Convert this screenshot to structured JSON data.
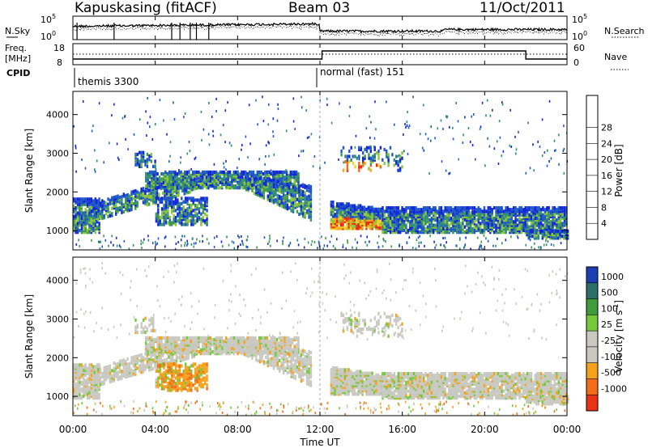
{
  "header": {
    "station": "Kapuskasing (fitACF)",
    "beam": "Beam 03",
    "date": "11/Oct/2011"
  },
  "noise_panel": {
    "left_label": "N.Sky",
    "right_label": "N.Search",
    "left_ticks": [
      "10^5",
      "10^0"
    ],
    "right_ticks": [
      "10^5",
      "10^0"
    ]
  },
  "freq_panel": {
    "left_label_line1": "Freq.",
    "left_label_line2": "[MHz]",
    "right_label": "Nave",
    "left_ticks": [
      "18",
      "8"
    ],
    "right_ticks": [
      "60",
      "0"
    ],
    "cpid_label": "CPID",
    "modes": [
      {
        "name": "themis 3300",
        "start_hour": 0
      },
      {
        "name": "normal (fast) 151",
        "start_hour": 12
      }
    ]
  },
  "time_axis": {
    "label": "Time UT",
    "ticks": [
      "00:00",
      "04:00",
      "08:00",
      "12:00",
      "16:00",
      "20:00",
      "00:00"
    ]
  },
  "chart_data": [
    {
      "type": "heatmap",
      "title": "",
      "xlabel": "Time UT",
      "ylabel": "Slant Range [km]",
      "x_range_hours": [
        0,
        24
      ],
      "y_range_km": [
        500,
        4600
      ],
      "y_ticks": [
        1000,
        2000,
        3000,
        4000
      ],
      "colorbar": {
        "label": "Power [dB]",
        "ticks": [
          "4",
          "8",
          "12",
          "16",
          "20",
          "24",
          "28"
        ],
        "colors": [
          "#1226d8",
          "#1e59c6",
          "#2e8b80",
          "#3f9a49",
          "#8cc63a",
          "#ecd622",
          "#f9a81a",
          "#f36b15",
          "#ea2a12"
        ]
      }
    },
    {
      "type": "heatmap",
      "title": "",
      "xlabel": "Time UT",
      "ylabel": "Slant Range [km]",
      "x_range_hours": [
        0,
        24
      ],
      "y_range_km": [
        500,
        4600
      ],
      "y_ticks": [
        1000,
        2000,
        3000,
        4000
      ],
      "colorbar": {
        "label": "Velocity [m s^-1]",
        "ticks": [
          "1000",
          "500",
          "100",
          "25",
          "-25",
          "-100",
          "-500",
          "-1000"
        ],
        "colors": [
          "#1b3fb0",
          "#2f6f6a",
          "#3f9b3c",
          "#77c93c",
          "#c9c9c2",
          "#c9c9c2",
          "#f4a21c",
          "#f46e17",
          "#ea3216"
        ]
      }
    }
  ]
}
